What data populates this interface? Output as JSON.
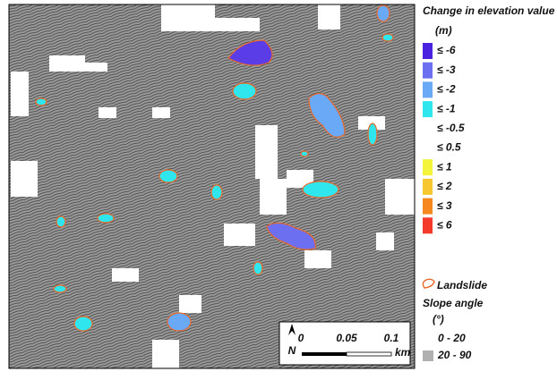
{
  "legend": {
    "title": "Change in elevation value",
    "unit": "(m)",
    "items": [
      {
        "label": "≤ -6",
        "color": "#4a22e0"
      },
      {
        "label": "≤ -3",
        "color": "#6c6ff0"
      },
      {
        "label": "≤ -2",
        "color": "#6aa9f6"
      },
      {
        "label": "≤ -1",
        "color": "#2fe6ef"
      },
      {
        "label": "≤ -0.5"
      },
      {
        "label": "≤ 0.5"
      },
      {
        "label": "≤ 1",
        "color": "#f4f43a"
      },
      {
        "label": "≤ 2",
        "color": "#f6c730"
      },
      {
        "label": "≤ 3",
        "color": "#f5891f"
      },
      {
        "label": "≤ 6",
        "color": "#f43a2b"
      }
    ],
    "landslide": "Landslide",
    "slope_title": "Slope angle",
    "slope_unit": "(°)",
    "slope_items": [
      {
        "label": "0 - 20",
        "color": "#ffffff"
      },
      {
        "label": "20 - 90",
        "color": "#b0b0b0"
      }
    ]
  },
  "scale_bar": {
    "labels": [
      "0",
      "0.05",
      "0.1"
    ],
    "unit": "km",
    "north": "N"
  }
}
